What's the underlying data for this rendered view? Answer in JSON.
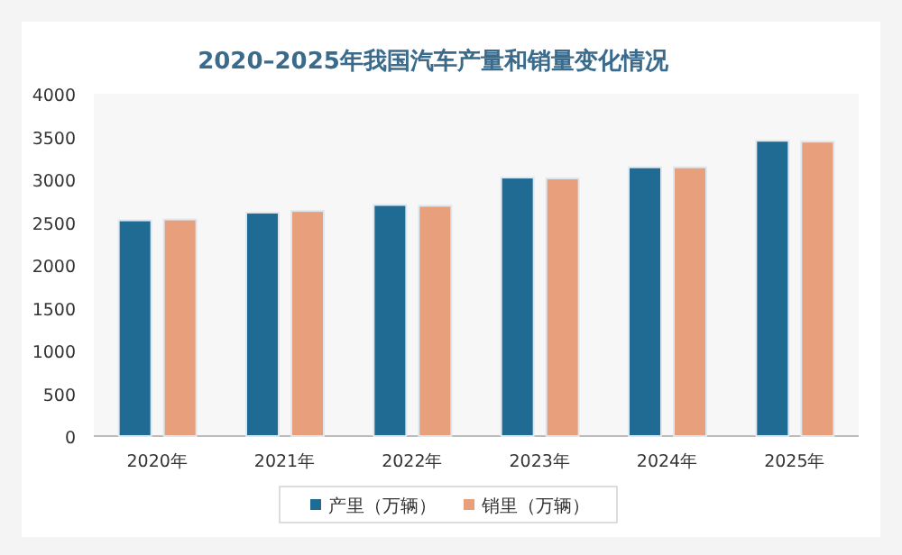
{
  "chart_data": {
    "type": "bar",
    "title": "2020–2025年我国汽车产量和销量变化情况",
    "categories": [
      "2020年",
      "2021年",
      "2022年",
      "2023年",
      "2024年",
      "2025年"
    ],
    "series": [
      {
        "name": "产里（万辆）",
        "color": "#1f6b94",
        "values": [
          2520,
          2610,
          2700,
          3020,
          3140,
          3450
        ]
      },
      {
        "name": "销里（万辆）",
        "color": "#e8a07c",
        "values": [
          2530,
          2630,
          2690,
          3010,
          3140,
          3440
        ]
      }
    ],
    "ylim": [
      0,
      4000
    ],
    "yticks": [
      0,
      500,
      1000,
      1500,
      2000,
      2500,
      3000,
      3500,
      4000
    ],
    "legend": "bottom"
  }
}
